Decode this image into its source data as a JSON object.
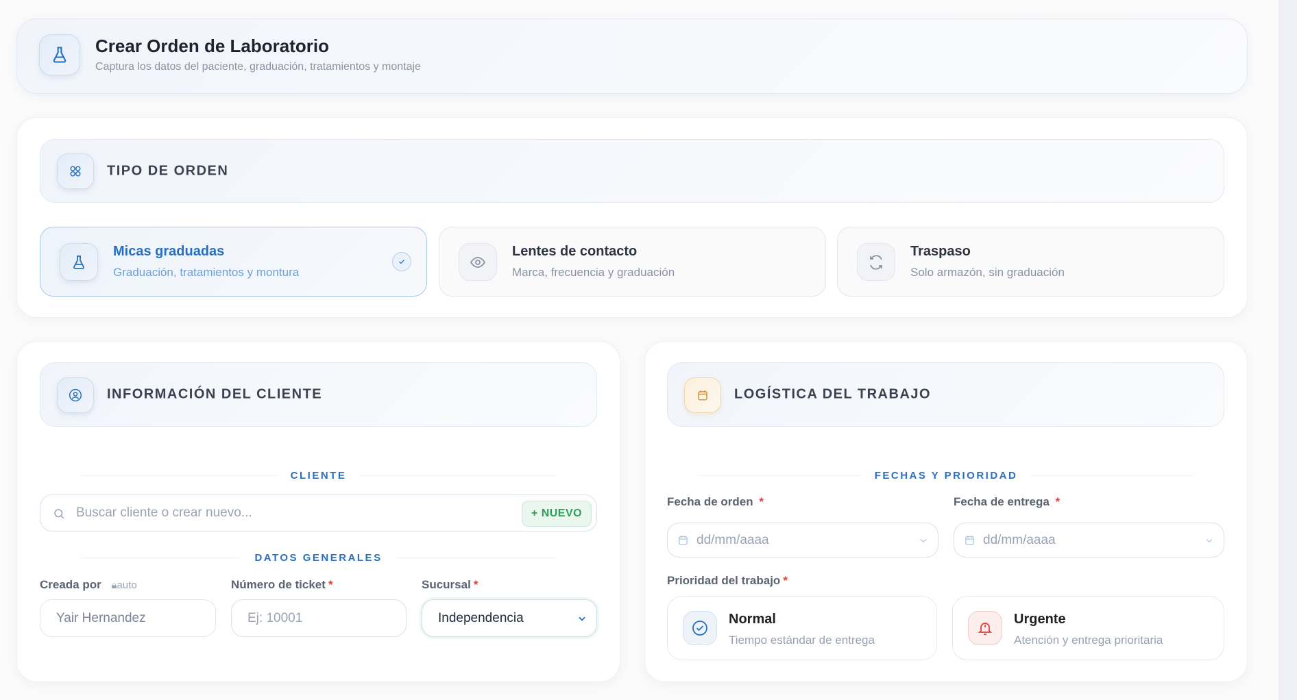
{
  "header": {
    "title": "Crear Orden de Laboratorio",
    "subtitle": "Captura los datos del paciente, graduación, tratamientos y montaje",
    "icon": "flask-icon"
  },
  "order_type": {
    "title": "TIPO DE ORDEN",
    "icon": "grid-icon",
    "options": [
      {
        "title": "Micas graduadas",
        "subtitle": "Graduación, tratamientos y montura",
        "icon": "flask-icon",
        "selected": true
      },
      {
        "title": "Lentes de contacto",
        "subtitle": "Marca, frecuencia y graduación",
        "icon": "eye-icon",
        "selected": false
      },
      {
        "title": "Traspaso",
        "subtitle": "Solo armazón, sin graduación",
        "icon": "refresh-icon",
        "selected": false
      }
    ]
  },
  "client": {
    "title": "INFORMACIÓN DEL CLIENTE",
    "icon": "user-circle-icon",
    "cliente_divider": "CLIENTE",
    "search_placeholder": "Buscar cliente o crear nuevo...",
    "new_button": "+ NUEVO",
    "general_divider": "DATOS GENERALES",
    "created_by": {
      "label": "Creada por",
      "badge": "auto",
      "value": "Yair Hernandez"
    },
    "ticket": {
      "label": "Número de ticket",
      "placeholder": "Ej: 10001"
    },
    "branch": {
      "label": "Sucursal",
      "value": "Independencia"
    }
  },
  "logistics": {
    "title": "LOGÍSTICA DEL TRABAJO",
    "icon": "calendar-icon",
    "divider": "FECHAS Y PRIORIDAD",
    "order_date": {
      "label": "Fecha de orden",
      "placeholder": "dd/mm/aaaa"
    },
    "delivery_date": {
      "label": "Fecha de entrega",
      "placeholder": "dd/mm/aaaa"
    },
    "priority_label": "Prioridad del trabajo",
    "priorities": [
      {
        "title": "Normal",
        "subtitle": "Tiempo estándar de entrega",
        "icon": "check-circle-icon",
        "color": "#2670c4"
      },
      {
        "title": "Urgente",
        "subtitle": "Atención y entrega prioritaria",
        "icon": "bell-icon",
        "color": "#e0403a"
      }
    ]
  },
  "required_mark": "*",
  "colors": {
    "accent": "#2670c4",
    "success": "#2f9e5b",
    "danger": "#e0403a",
    "warning": "#e0902a"
  }
}
